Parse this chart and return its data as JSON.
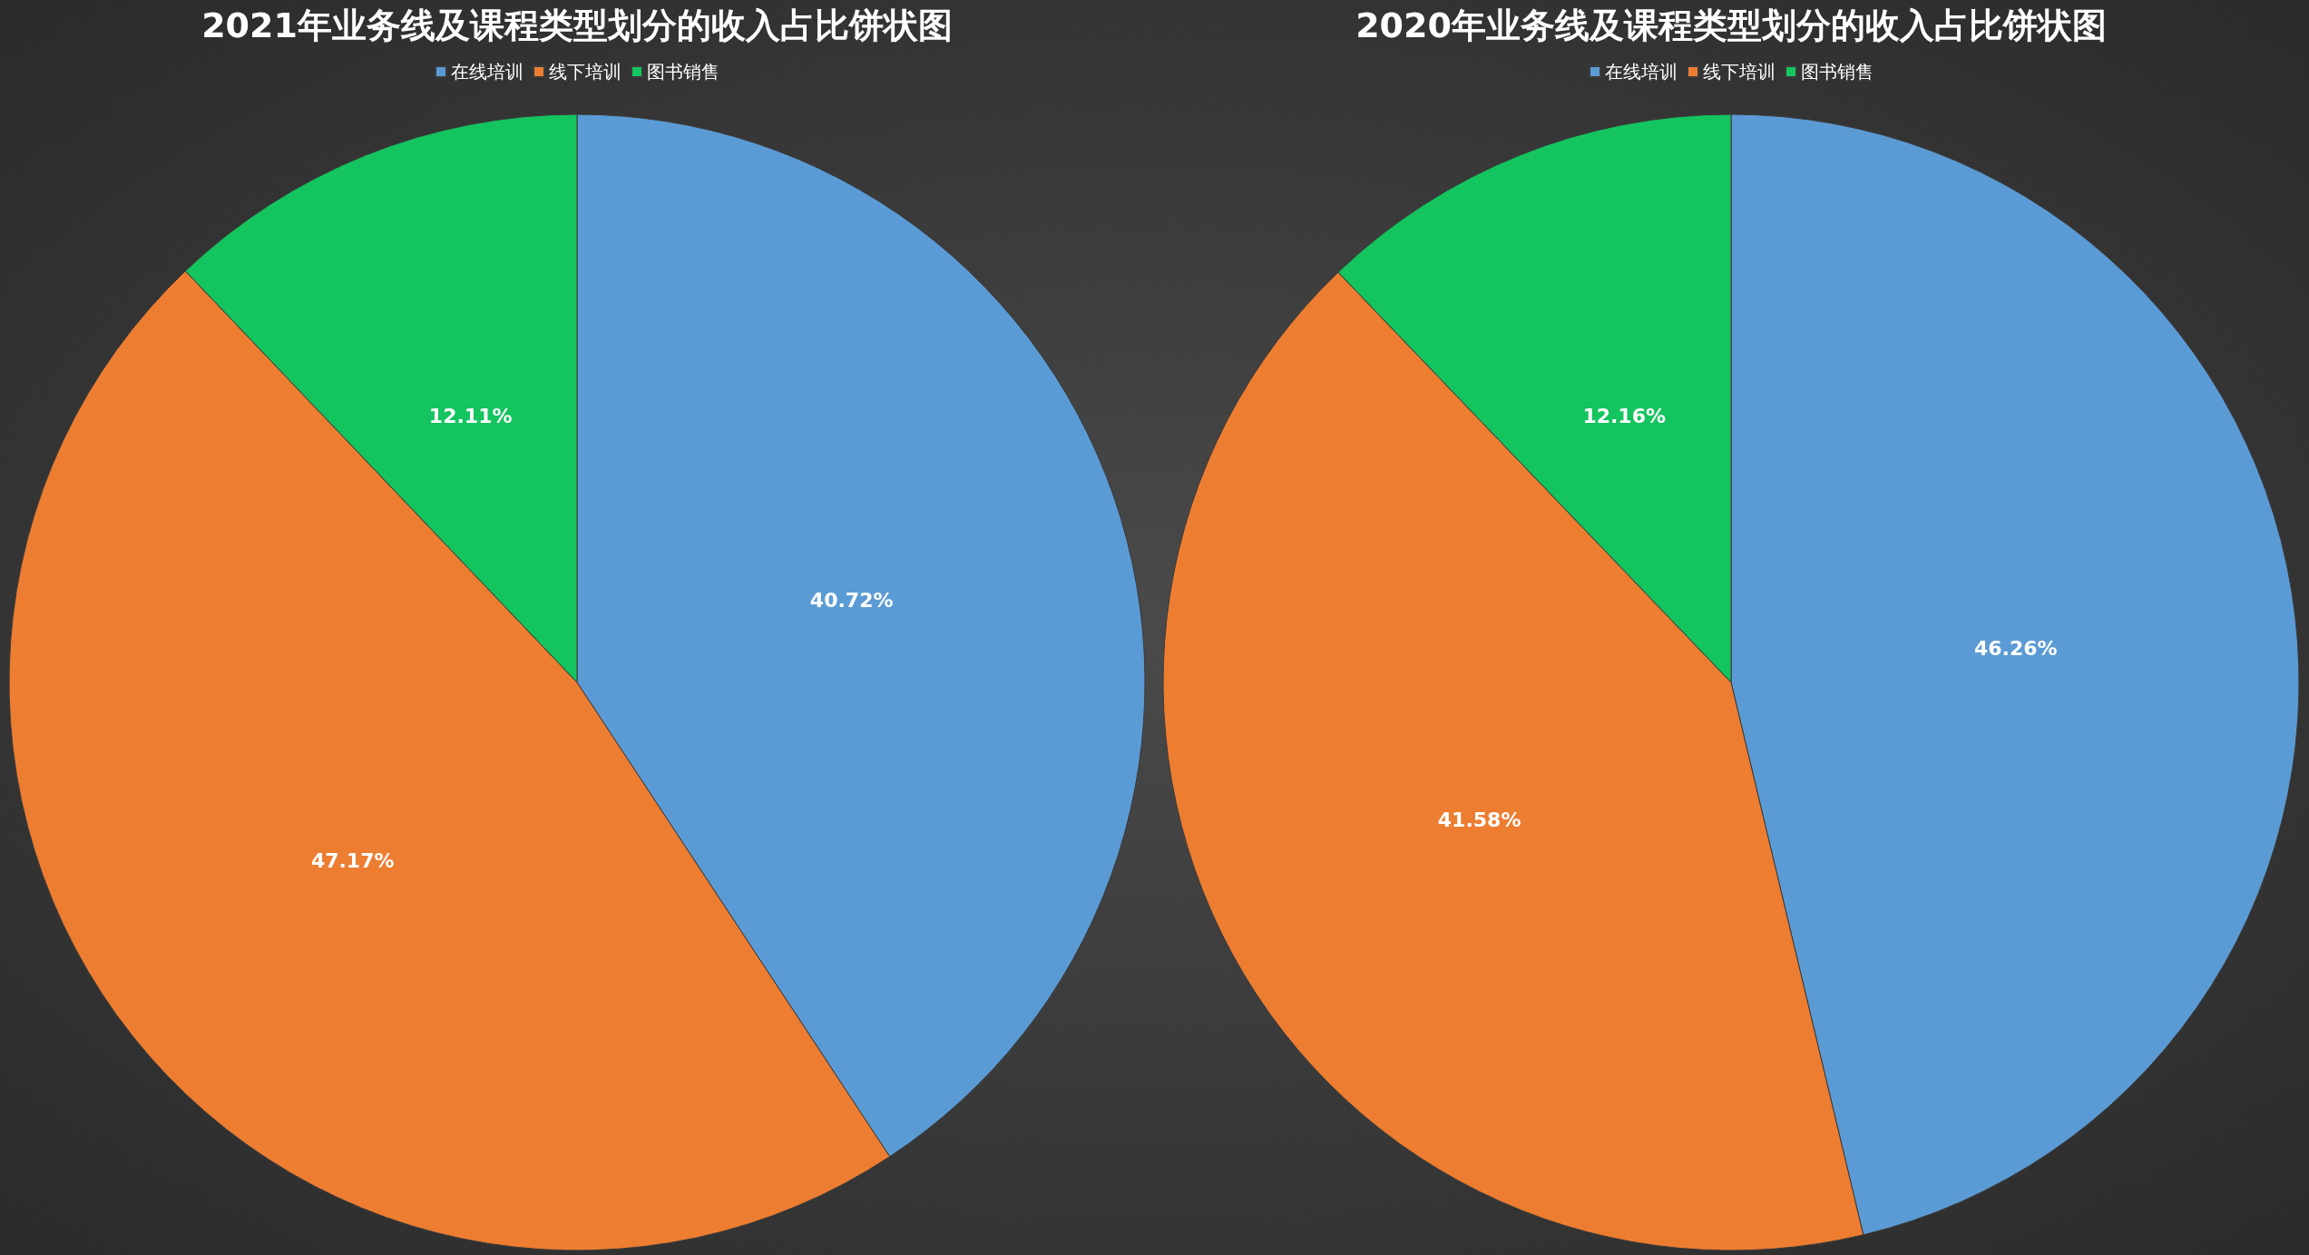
{
  "chart_data": [
    {
      "type": "pie",
      "title": "2021年业务线及课程类型划分的收入占比饼状图",
      "categories": [
        "在线培训",
        "线下培训",
        "图书销售"
      ],
      "values": [
        40.72,
        47.17,
        12.11
      ],
      "value_labels": [
        "40.72%",
        "47.17%",
        "12.11%"
      ],
      "colors": [
        "#5b9bd5",
        "#ed7d31",
        "#13c45f"
      ],
      "legend": "top"
    },
    {
      "type": "pie",
      "title": "2020年业务线及课程类型划分的收入占比饼状图",
      "categories": [
        "在线培训",
        "线下培训",
        "图书销售"
      ],
      "values": [
        46.26,
        41.58,
        12.16
      ],
      "value_labels": [
        "46.26%",
        "41.58%",
        "12.16%"
      ],
      "colors": [
        "#5b9bd5",
        "#ed7d31",
        "#13c45f"
      ],
      "legend": "top"
    }
  ]
}
